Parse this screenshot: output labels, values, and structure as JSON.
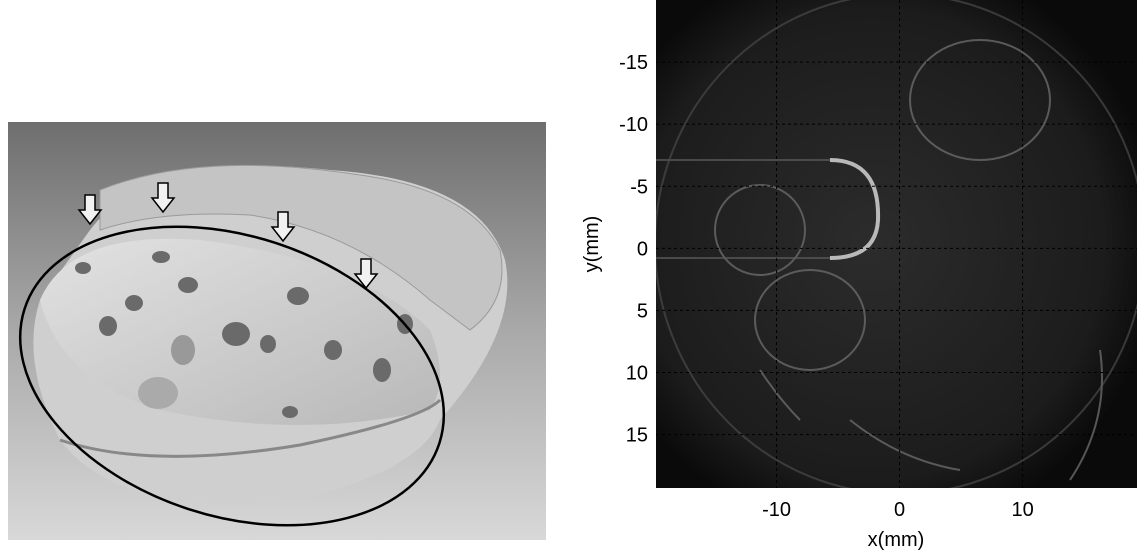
{
  "chart_data": {
    "type": "image",
    "xlabel": "x(mm)",
    "ylabel": "y(mm)",
    "xlim": [
      -19.8,
      19.3
    ],
    "ylim": [
      19.3,
      -20
    ],
    "xticks": [
      -10,
      0,
      10
    ],
    "yticks": [
      -15,
      -10,
      -5,
      0,
      5,
      10,
      15
    ],
    "grid": true
  }
}
